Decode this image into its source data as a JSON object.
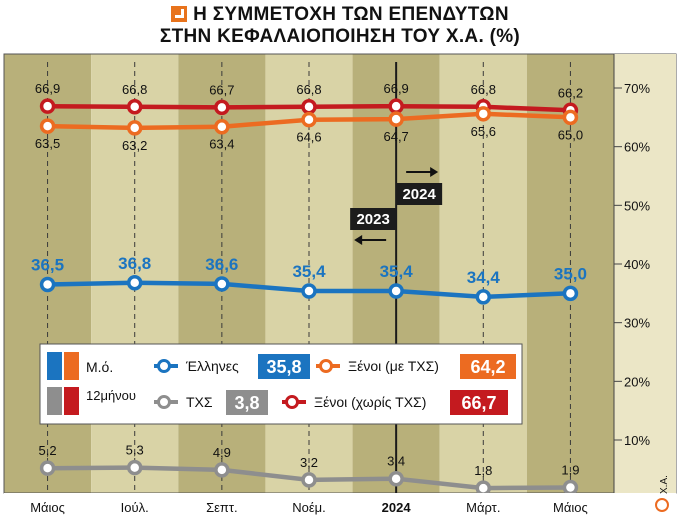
{
  "title": {
    "line1": "Η ΣΥΜΜΕΤΟΧΗ ΤΩΝ ΕΠΕΝΔΥΤΩΝ",
    "line2": "ΣΤΗΝ ΚΕΦΑΛΑΙΟΠΟΙΗΣΗ ΤΟΥ Χ.Α. (%)"
  },
  "source": "Χ.Α.",
  "colors": {
    "band_dark": "#b8b07a",
    "band_light": "#d9d3a6",
    "axis_panel": "#ebe6c6",
    "greeks": "#1b74c0",
    "foreign_tx": "#ec6b21",
    "foreign_no_tx": "#c41a1f",
    "tx": "#8e8e8e",
    "ma_greeks": "#1b74c0",
    "ma_foreign": "#ec6b21",
    "m12_tx": "#8e8e8e",
    "m12_foreign": "#c41a1f"
  },
  "annotations": {
    "left_label": "2023",
    "right_label": "2024",
    "left_arrow": "arrow-left-icon",
    "right_arrow": "arrow-right-icon"
  },
  "legend": {
    "swatch_row1_label": "Μ.ό.",
    "swatch_row2_label": "12μήνου",
    "items": [
      {
        "label": "Έλληνες",
        "value": "35,8",
        "series": "greeks"
      },
      {
        "label": "Ξένοι (με ΤΧΣ)",
        "value": "64,2",
        "series": "foreign_tx"
      },
      {
        "label": "ΤΧΣ",
        "value": "3,8",
        "series": "tx"
      },
      {
        "label": "Ξένοι (χωρίς ΤΧΣ)",
        "value": "66,7",
        "series": "foreign_no_tx"
      }
    ]
  },
  "chart_data": {
    "type": "line",
    "x": [
      "Μάιος",
      "Ιούλ.",
      "Σεπτ.",
      "Νοέμ.",
      "2024",
      "Μάρτ.",
      "Μάιος"
    ],
    "ylim": [
      0,
      72
    ],
    "yticks": [
      10,
      20,
      30,
      40,
      50,
      60,
      70
    ],
    "ytick_labels": [
      "10%",
      "20%",
      "30%",
      "40%",
      "50%",
      "60%",
      "70%"
    ],
    "grid": false,
    "legend_position": "center-left",
    "series": [
      {
        "key": "foreign_no_tx",
        "values": [
          66.9,
          66.8,
          66.7,
          66.8,
          66.9,
          66.8,
          66.2
        ],
        "labels": [
          "66,9",
          "66,8",
          "66,7",
          "66,8",
          "66,9",
          "66,8",
          "66,2"
        ],
        "label_pos": "above"
      },
      {
        "key": "foreign_tx",
        "values": [
          63.5,
          63.2,
          63.4,
          64.6,
          64.7,
          65.6,
          65.0
        ],
        "labels": [
          "63,5",
          "63,2",
          "63,4",
          "64,6",
          "64,7",
          "65,6",
          "65,0"
        ],
        "label_pos": "below"
      },
      {
        "key": "greeks",
        "values": [
          36.5,
          36.8,
          36.6,
          35.4,
          35.4,
          34.4,
          35.0
        ],
        "labels": [
          "36,5",
          "36,8",
          "36,6",
          "35,4",
          "35,4",
          "34,4",
          "35,0"
        ],
        "label_pos": "above"
      },
      {
        "key": "tx",
        "values": [
          5.2,
          5.3,
          4.9,
          3.2,
          3.4,
          1.8,
          1.9
        ],
        "labels": [
          "5,2",
          "5,3",
          "4,9",
          "3,2",
          "3,4",
          "1,8",
          "1,9"
        ],
        "label_pos": "above"
      }
    ]
  }
}
